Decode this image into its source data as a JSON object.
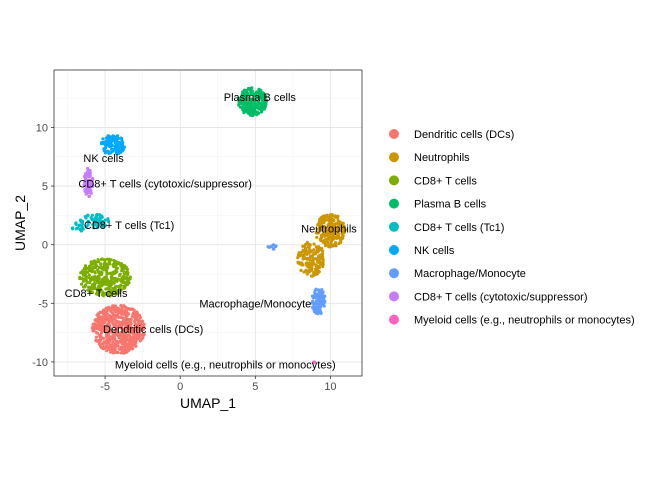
{
  "chart_data": {
    "type": "scatter",
    "title": "",
    "xlabel": "UMAP_1",
    "ylabel": "UMAP_2",
    "xlim": [
      -8.4,
      12.1
    ],
    "ylim": [
      -11.2,
      14.9
    ],
    "xticks": [
      -5,
      0,
      5,
      10
    ],
    "yticks": [
      -10,
      -5,
      0,
      5,
      10
    ],
    "grid": true,
    "legend_position": "right",
    "series": [
      {
        "name": "Dendritic cells (DCs)",
        "color": "#F8766D",
        "label": "Dendritic cells (DCs)",
        "label_pos": [
          -1.8,
          -7.2
        ],
        "blobs": [
          {
            "cx": -4.1,
            "cy": -7.2,
            "rx": 1.75,
            "ry": 2.1,
            "n": 560
          }
        ]
      },
      {
        "name": "Neutrophils",
        "color": "#CD9600",
        "label": "Neutrophils",
        "label_pos": [
          9.9,
          1.4
        ],
        "blobs": [
          {
            "cx": 10.0,
            "cy": 1.2,
            "rx": 1.0,
            "ry": 1.4,
            "n": 220
          },
          {
            "cx": 8.7,
            "cy": -1.2,
            "rx": 0.9,
            "ry": 1.5,
            "n": 160
          }
        ]
      },
      {
        "name": "CD8+ T cells",
        "color": "#7CAE00",
        "label": "CD8+ T cells",
        "label_pos": [
          -5.6,
          -4.1
        ],
        "blobs": [
          {
            "cx": -5.0,
            "cy": -2.8,
            "rx": 1.7,
            "ry": 1.6,
            "n": 330
          }
        ]
      },
      {
        "name": "Plasma B cells",
        "color": "#00BE67",
        "label": "Plasma B cells",
        "label_pos": [
          5.3,
          12.6
        ],
        "blobs": [
          {
            "cx": 4.8,
            "cy": 12.2,
            "rx": 0.95,
            "ry": 1.2,
            "n": 240
          }
        ]
      },
      {
        "name": "CD8+ T cells (Tc1)",
        "color": "#00BFC4",
        "label": "CD8+ T cells (Tc1)",
        "label_pos": [
          -3.4,
          1.7
        ],
        "blobs": [
          {
            "cx": -5.7,
            "cy": 2.0,
            "rx": 1.0,
            "ry": 0.6,
            "n": 60
          },
          {
            "cx": -6.7,
            "cy": 1.5,
            "rx": 0.5,
            "ry": 0.45,
            "n": 20
          }
        ]
      },
      {
        "name": "NK cells",
        "color": "#00A9FF",
        "label": "NK cells",
        "label_pos": [
          -5.1,
          7.4
        ],
        "blobs": [
          {
            "cx": -4.5,
            "cy": 8.5,
            "rx": 0.85,
            "ry": 0.85,
            "n": 110
          }
        ]
      },
      {
        "name": "Macrophage/Monocyte",
        "color": "#619CFF",
        "label": "Macrophage/Monocyte",
        "label_pos": [
          5.0,
          -5.0
        ],
        "blobs": [
          {
            "cx": 9.2,
            "cy": -4.8,
            "rx": 0.45,
            "ry": 1.15,
            "n": 90
          },
          {
            "cx": 6.1,
            "cy": -0.2,
            "rx": 0.35,
            "ry": 0.2,
            "n": 10
          }
        ]
      },
      {
        "name": "CD8+ T cells (cytotoxic/suppressor)",
        "color": "#C77CFF",
        "label": "CD8+ T cells (cytotoxic/suppressor)",
        "label_pos": [
          -1.0,
          5.2
        ],
        "blobs": [
          {
            "cx": -6.1,
            "cy": 5.3,
            "rx": 0.3,
            "ry": 1.25,
            "n": 70
          }
        ]
      },
      {
        "name": "Myeloid cells (e.g., neutrophils or monocytes)",
        "color": "#FF61C3",
        "label": "Myeloid cells (e.g., neutrophils or monocytes)",
        "label_pos": [
          3.0,
          -10.2
        ],
        "blobs": [
          {
            "cx": 8.9,
            "cy": -10.0,
            "rx": 0.05,
            "ry": 0.05,
            "n": 2
          }
        ]
      }
    ]
  }
}
